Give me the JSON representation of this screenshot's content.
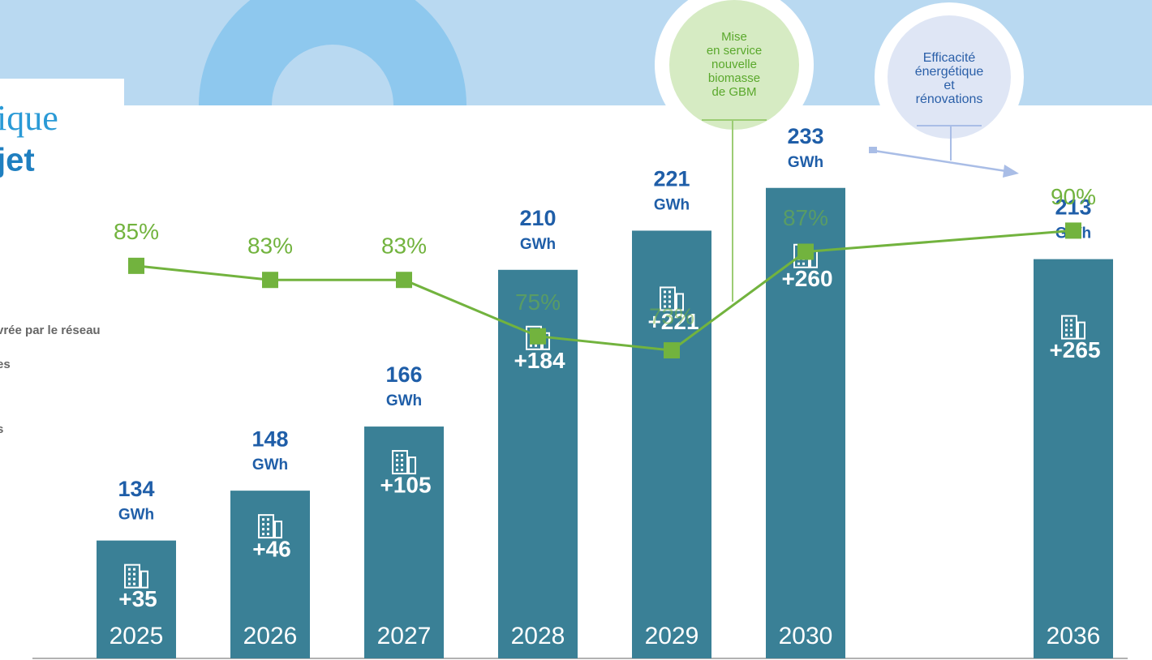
{
  "chart_data": {
    "type": "bar",
    "title_fragments": [
      "ique",
      "jet"
    ],
    "legend_fragments": [
      "vrée par le réseau",
      "es",
      "s"
    ],
    "categories": [
      "2025",
      "2026",
      "2027",
      "2028",
      "2029",
      "2030",
      "2036"
    ],
    "unit": "GWh",
    "series": [
      {
        "type": "bar",
        "color": "#3a8096",
        "values": [
          134,
          148,
          166,
          210,
          221,
          233,
          213
        ]
      },
      {
        "type": "line",
        "axis": "y2",
        "color": "#72b33e",
        "values": [
          85,
          83,
          83,
          75,
          73,
          87,
          90
        ],
        "value_labels": [
          "85%",
          "83%",
          "83%",
          "75%",
          "73%",
          "87%",
          "90%"
        ]
      }
    ],
    "buildings": {
      "values": [
        35,
        46,
        105,
        184,
        221,
        260,
        265
      ],
      "value_labels": [
        "+35",
        "+46",
        "+105",
        "+184",
        "+221",
        "+260",
        "+265"
      ]
    },
    "annotations": [
      {
        "lines": [
          "Mise",
          "en service",
          "nouvelle",
          "biomasse",
          "de GBM"
        ]
      },
      {
        "lines": [
          "Efficacité",
          "énergétique",
          "et",
          "rénovations"
        ]
      }
    ],
    "ylim": [
      100,
      240
    ],
    "y2lim": [
      60,
      95
    ]
  }
}
